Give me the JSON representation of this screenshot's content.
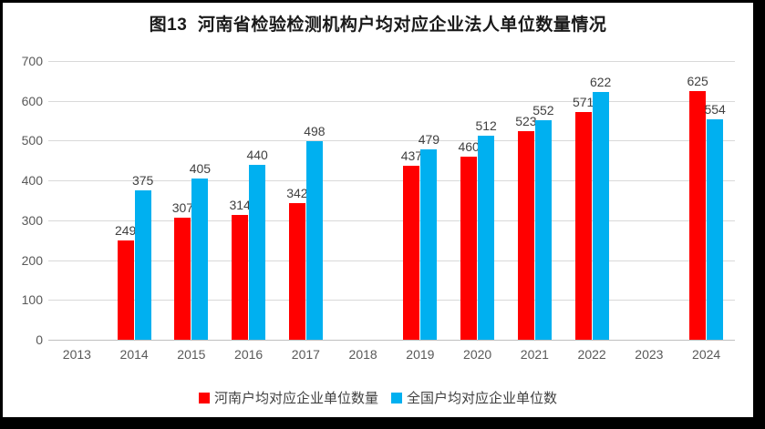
{
  "frame": {
    "background_color": "#000000",
    "panel_color": "#ffffff"
  },
  "chart_data": {
    "type": "bar",
    "title": "图13  河南省检验检测机构户均对应企业法人单位数量情况",
    "categories": [
      "2013",
      "2014",
      "2015",
      "2016",
      "2017",
      "2018",
      "2019",
      "2020",
      "2021",
      "2022",
      "2023",
      "2024"
    ],
    "series": [
      {
        "name": "河南户均对应企业单位数量",
        "color": "#ff0000",
        "values": [
          null,
          249,
          307,
          314,
          342,
          null,
          437,
          460,
          523,
          571,
          null,
          625
        ]
      },
      {
        "name": "全国户均对应企业单位数",
        "color": "#00b0f0",
        "values": [
          null,
          375,
          405,
          440,
          498,
          null,
          479,
          512,
          552,
          622,
          null,
          554
        ]
      }
    ],
    "ylim": [
      0,
      700
    ],
    "yticks": [
      0,
      100,
      200,
      300,
      400,
      500,
      600,
      700
    ],
    "grid": "horizontal",
    "legend_position": "bottom",
    "style_colors": {
      "grid": "#d9d9d9",
      "axis_line": "#bfbfbf",
      "tick_label": "#595959",
      "data_label": "#404040",
      "title": "#1a1a1a"
    }
  }
}
